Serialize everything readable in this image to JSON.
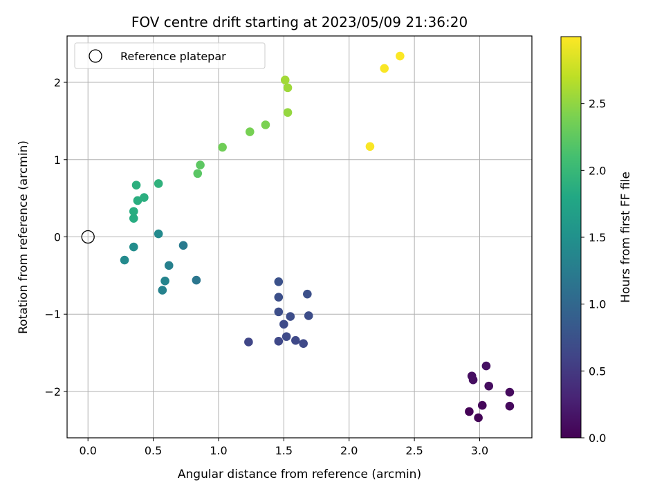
{
  "chart_data": {
    "type": "scatter",
    "title": "FOV centre drift starting at 2023/05/09 21:36:20",
    "xlabel": "Angular distance from reference (arcmin)",
    "ylabel": "Rotation from reference (arcmin)",
    "xlim": [
      -0.16,
      3.4
    ],
    "ylim": [
      -2.6,
      2.6
    ],
    "xticks": [
      0.0,
      0.5,
      1.0,
      1.5,
      2.0,
      2.5,
      3.0
    ],
    "xtick_labels": [
      "0.0",
      "0.5",
      "1.0",
      "1.5",
      "2.0",
      "2.5",
      "3.0"
    ],
    "yticks": [
      -2,
      -1,
      0,
      1,
      2
    ],
    "ytick_labels": [
      "−2",
      "−1",
      "0",
      "1",
      "2"
    ],
    "grid": true,
    "legend": {
      "placement": "upper-left",
      "entries": [
        {
          "label": "Reference platepar",
          "marker": "open-circle"
        }
      ]
    },
    "reference_point": {
      "x": 0.0,
      "y": 0.0
    },
    "colorbar": {
      "label": "Hours from first FF file",
      "range": [
        0.0,
        3.0
      ],
      "ticks": [
        0.0,
        0.5,
        1.0,
        1.5,
        2.0,
        2.5
      ],
      "tick_labels": [
        "0.0",
        "0.5",
        "1.0",
        "1.5",
        "2.0",
        "2.5"
      ],
      "colormap": "viridis"
    },
    "points": [
      {
        "x": 2.92,
        "y": -2.26,
        "c": 0.02
      },
      {
        "x": 2.99,
        "y": -2.34,
        "c": 0.03
      },
      {
        "x": 3.02,
        "y": -2.18,
        "c": 0.05
      },
      {
        "x": 3.23,
        "y": -2.19,
        "c": 0.07
      },
      {
        "x": 3.23,
        "y": -2.01,
        "c": 0.08
      },
      {
        "x": 3.07,
        "y": -1.93,
        "c": 0.1
      },
      {
        "x": 2.95,
        "y": -1.85,
        "c": 0.11
      },
      {
        "x": 2.94,
        "y": -1.8,
        "c": 0.12
      },
      {
        "x": 3.05,
        "y": -1.67,
        "c": 0.14
      },
      {
        "x": 1.23,
        "y": -1.36,
        "c": 0.62
      },
      {
        "x": 1.46,
        "y": -1.35,
        "c": 0.64
      },
      {
        "x": 1.65,
        "y": -1.38,
        "c": 0.65
      },
      {
        "x": 1.59,
        "y": -1.34,
        "c": 0.66
      },
      {
        "x": 1.52,
        "y": -1.29,
        "c": 0.67
      },
      {
        "x": 1.5,
        "y": -1.13,
        "c": 0.68
      },
      {
        "x": 1.55,
        "y": -1.03,
        "c": 0.7
      },
      {
        "x": 1.69,
        "y": -1.02,
        "c": 0.7
      },
      {
        "x": 1.46,
        "y": -0.97,
        "c": 0.71
      },
      {
        "x": 1.46,
        "y": -0.78,
        "c": 0.72
      },
      {
        "x": 1.68,
        "y": -0.74,
        "c": 0.73
      },
      {
        "x": 1.46,
        "y": -0.58,
        "c": 0.74
      },
      {
        "x": 0.83,
        "y": -0.56,
        "c": 1.18
      },
      {
        "x": 0.57,
        "y": -0.69,
        "c": 1.32
      },
      {
        "x": 0.59,
        "y": -0.57,
        "c": 1.34
      },
      {
        "x": 0.62,
        "y": -0.37,
        "c": 1.3
      },
      {
        "x": 0.73,
        "y": -0.11,
        "c": 1.22
      },
      {
        "x": 0.28,
        "y": -0.3,
        "c": 1.42
      },
      {
        "x": 0.35,
        "y": -0.13,
        "c": 1.45
      },
      {
        "x": 0.54,
        "y": 0.04,
        "c": 1.42
      },
      {
        "x": 0.35,
        "y": 0.24,
        "c": 1.85
      },
      {
        "x": 0.35,
        "y": 0.33,
        "c": 1.86
      },
      {
        "x": 0.38,
        "y": 0.47,
        "c": 1.87
      },
      {
        "x": 0.43,
        "y": 0.51,
        "c": 1.88
      },
      {
        "x": 0.37,
        "y": 0.67,
        "c": 1.89
      },
      {
        "x": 0.54,
        "y": 0.69,
        "c": 1.92
      },
      {
        "x": 0.84,
        "y": 0.82,
        "c": 2.22
      },
      {
        "x": 0.86,
        "y": 0.93,
        "c": 2.24
      },
      {
        "x": 1.03,
        "y": 1.16,
        "c": 2.34
      },
      {
        "x": 1.24,
        "y": 1.36,
        "c": 2.38
      },
      {
        "x": 1.36,
        "y": 1.45,
        "c": 2.4
      },
      {
        "x": 1.53,
        "y": 1.61,
        "c": 2.52
      },
      {
        "x": 1.53,
        "y": 1.93,
        "c": 2.56
      },
      {
        "x": 1.51,
        "y": 2.03,
        "c": 2.58
      },
      {
        "x": 2.16,
        "y": 1.17,
        "c": 2.98
      },
      {
        "x": 2.27,
        "y": 2.18,
        "c": 2.98
      },
      {
        "x": 2.39,
        "y": 2.34,
        "c": 2.99
      }
    ]
  }
}
